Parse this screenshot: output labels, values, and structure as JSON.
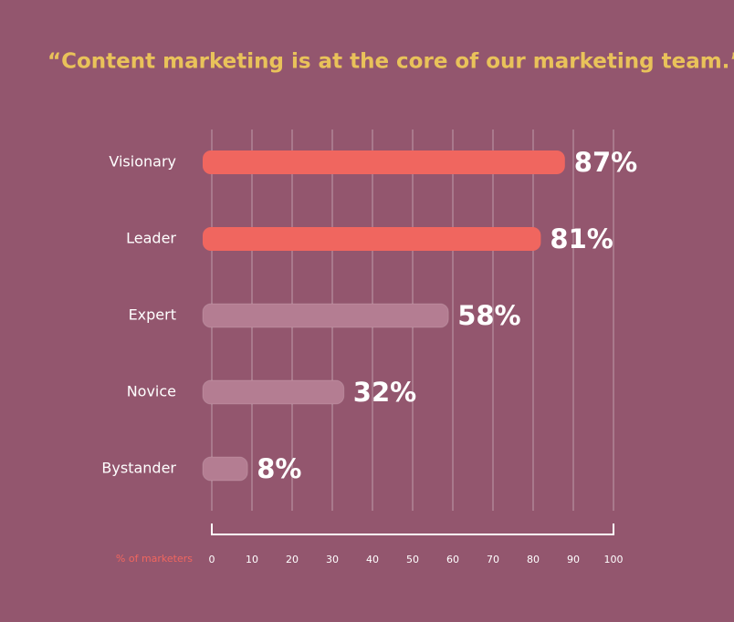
{
  "chart_data": {
    "type": "bar",
    "orientation": "horizontal",
    "title": "“Content marketing is at the core of our marketing team.”",
    "categories": [
      "Visionary",
      "Leader",
      "Expert",
      "Novice",
      "Bystander"
    ],
    "values": [
      87,
      81,
      58,
      32,
      8
    ],
    "value_labels": [
      "87%",
      "81%",
      "58%",
      "32%",
      "8%"
    ],
    "colors": [
      "#f0665f",
      "#f0665f",
      "#b47d92",
      "#b47d92",
      "#b47d92"
    ],
    "xlabel": "% of marketers",
    "xlim": [
      0,
      100
    ],
    "xticks": [
      0,
      10,
      20,
      30,
      40,
      50,
      60,
      70,
      80,
      90,
      100
    ],
    "grid": true
  }
}
